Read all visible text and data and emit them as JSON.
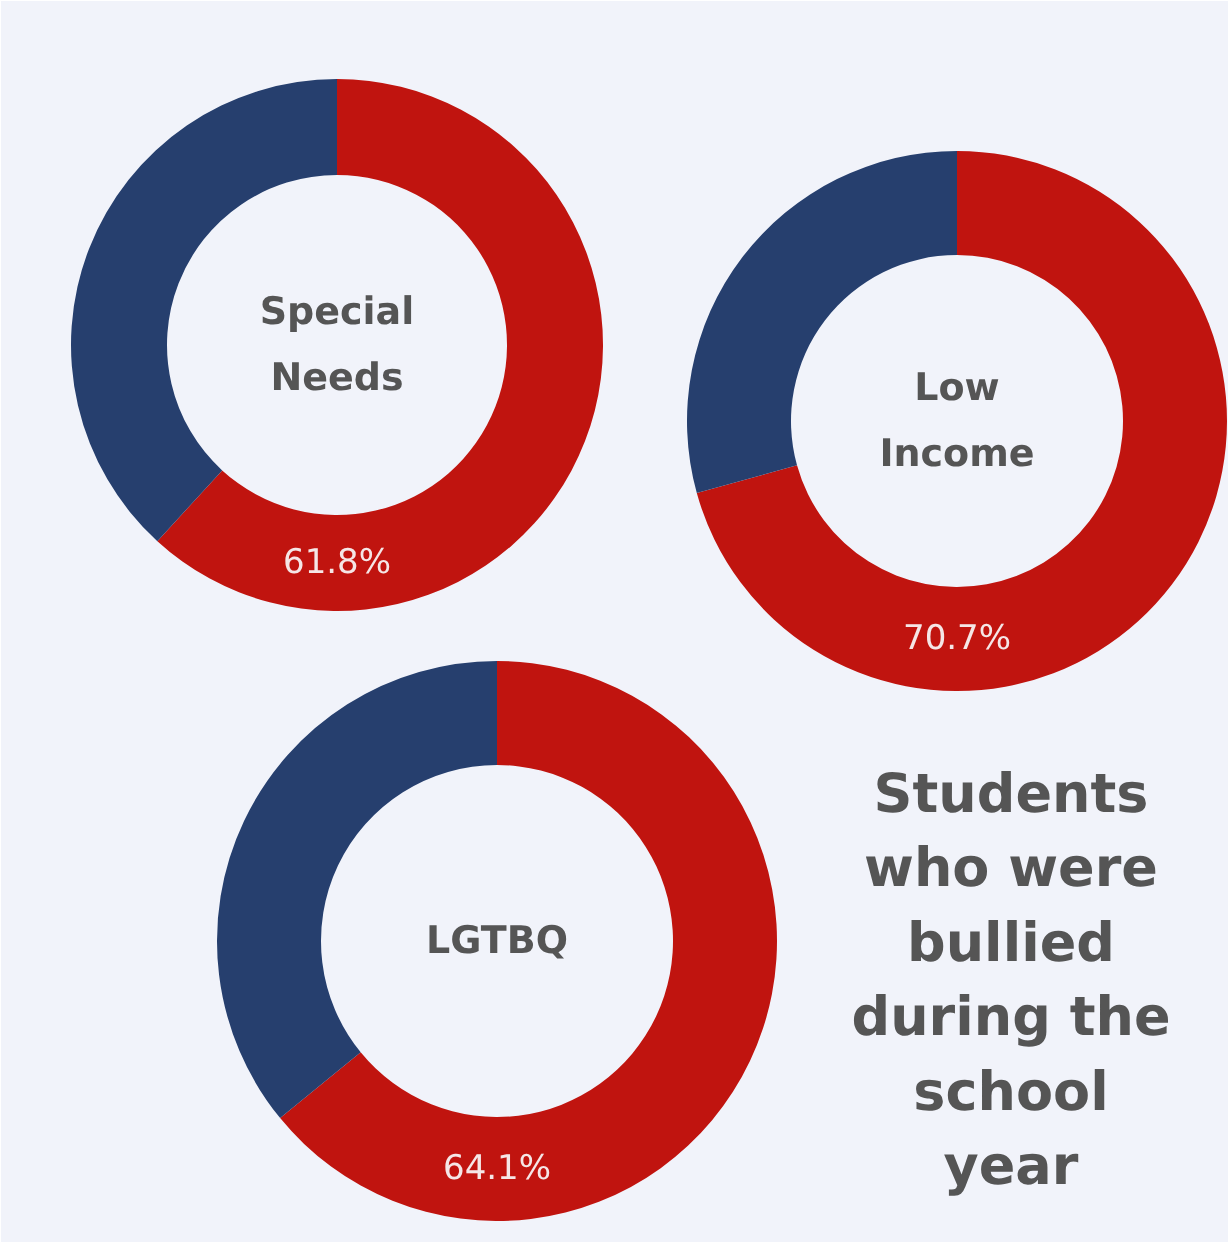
{
  "chart_data": [
    {
      "type": "donut",
      "title": "Special\nNeeds",
      "categories": [
        null,
        null
      ],
      "values": [
        61.8,
        38.2
      ],
      "colors": [
        "#c0140f",
        "#263f6e"
      ],
      "value_labels": [
        "61.8%",
        null
      ]
    },
    {
      "type": "donut",
      "title": "Low\nIncome",
      "categories": [
        null,
        null
      ],
      "values": [
        70.7,
        29.3
      ],
      "colors": [
        "#c0140f",
        "#263f6e"
      ],
      "value_labels": [
        "70.7%",
        null
      ]
    },
    {
      "type": "donut",
      "title": "LGTBQ",
      "categories": [
        null,
        null
      ],
      "values": [
        64.1,
        35.9
      ],
      "colors": [
        "#c0140f",
        "#263f6e"
      ],
      "value_labels": [
        "64.1%",
        null
      ]
    },
    {
      "type": "other",
      "title": "Students\nwho were\nbullied\nduring the\nschool\nyear"
    }
  ]
}
